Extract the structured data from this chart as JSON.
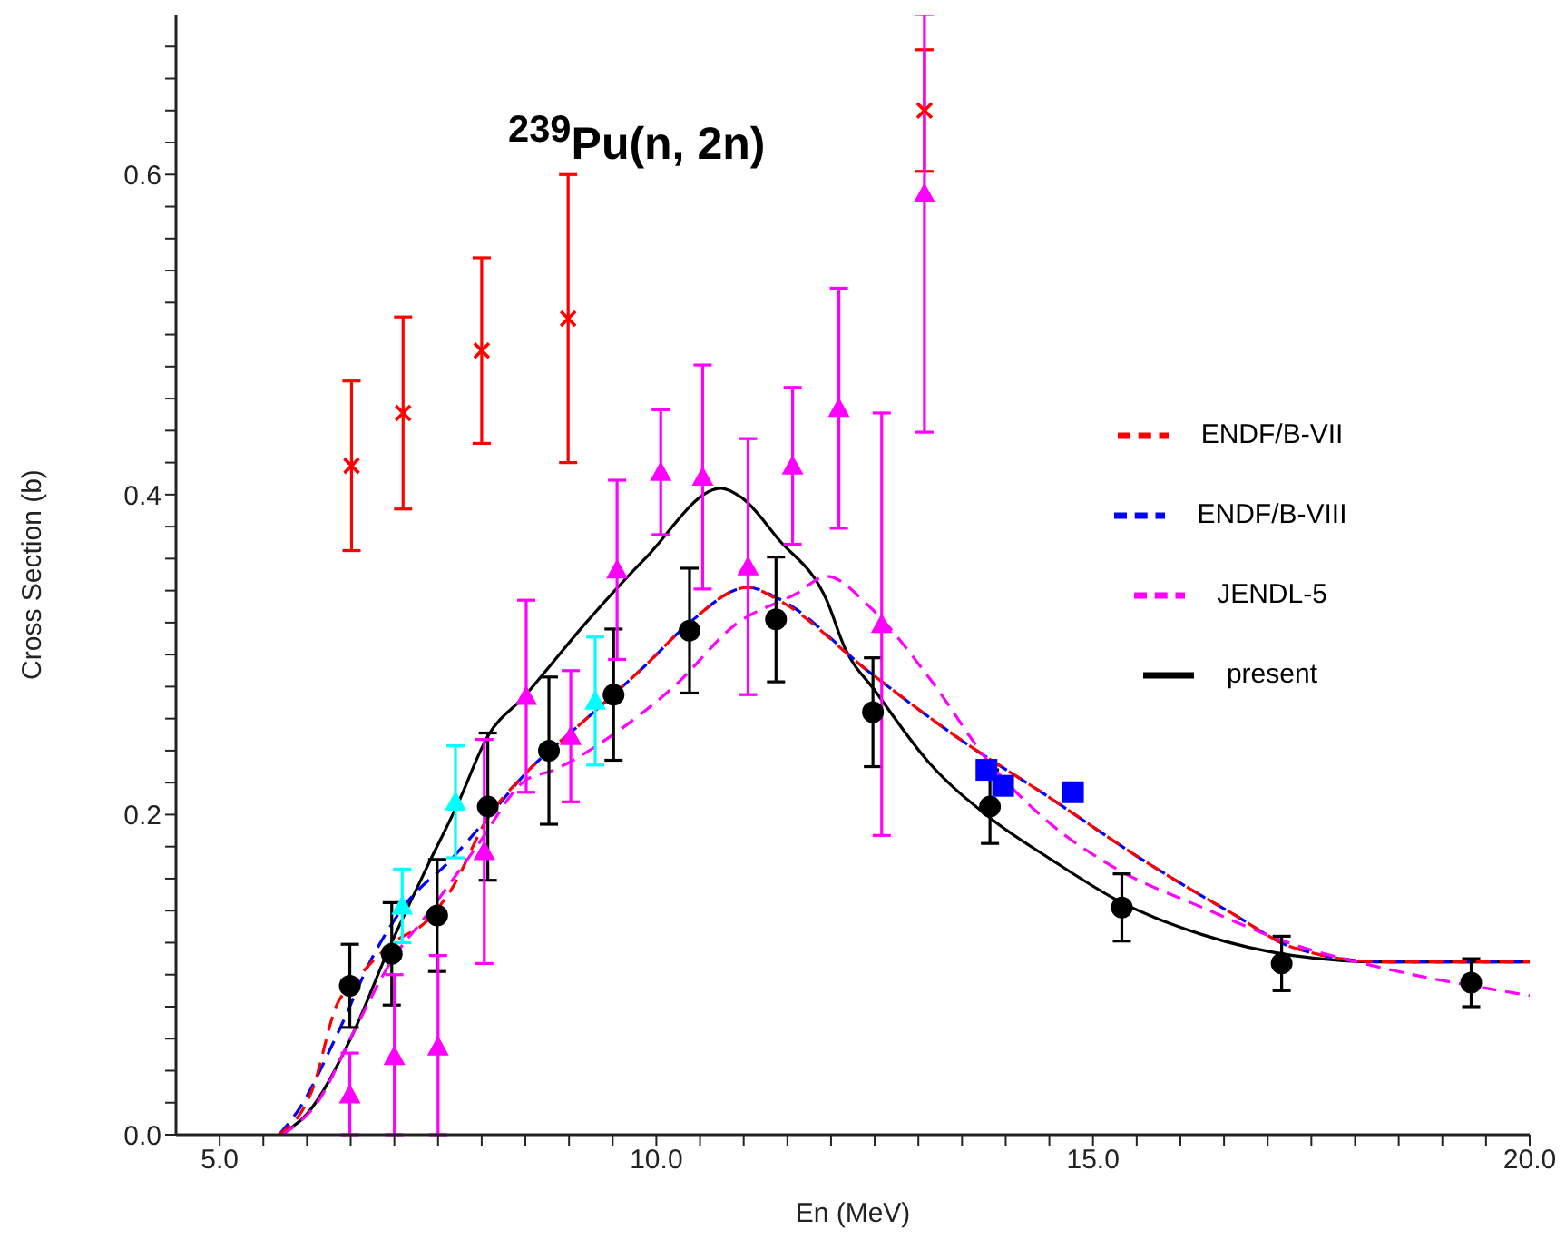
{
  "chart_data": {
    "type": "line",
    "title": "$^{239}$Pu(n, 2n)",
    "xlabel": "En  (MeV)",
    "ylabel": "Cross Section  (b)",
    "xlim": [
      4.5,
      20
    ],
    "ylim": [
      0,
      0.7
    ],
    "xticks": [
      {
        "value": 5,
        "label": "5.0"
      },
      {
        "value": 5.5,
        "label": null
      },
      {
        "value": 6,
        "label": null
      },
      {
        "value": 6.5,
        "label": null
      },
      {
        "value": 7,
        "label": null
      },
      {
        "value": 7.5,
        "label": null
      },
      {
        "value": 8,
        "label": null
      },
      {
        "value": 8.5,
        "label": null
      },
      {
        "value": 9,
        "label": null
      },
      {
        "value": 9.5,
        "label": null
      },
      {
        "value": 10,
        "label": "10.0"
      },
      {
        "value": 10.5,
        "label": null
      },
      {
        "value": 11,
        "label": null
      },
      {
        "value": 11.5,
        "label": null
      },
      {
        "value": 12,
        "label": null
      },
      {
        "value": 12.5,
        "label": null
      },
      {
        "value": 13,
        "label": null
      },
      {
        "value": 13.5,
        "label": null
      },
      {
        "value": 14,
        "label": null
      },
      {
        "value": 14.5,
        "label": null
      },
      {
        "value": 15,
        "label": "15.0"
      },
      {
        "value": 15.5,
        "label": null
      },
      {
        "value": 16,
        "label": null
      },
      {
        "value": 16.5,
        "label": null
      },
      {
        "value": 17,
        "label": null
      },
      {
        "value": 17.5,
        "label": null
      },
      {
        "value": 18,
        "label": null
      },
      {
        "value": 18.5,
        "label": null
      },
      {
        "value": 19,
        "label": null
      },
      {
        "value": 19.5,
        "label": null
      },
      {
        "value": 20,
        "label": "20.0"
      }
    ],
    "yticks": [
      {
        "value": 0,
        "label": "0.0"
      },
      {
        "value": 0.02,
        "label": null
      },
      {
        "value": 0.04,
        "label": null
      },
      {
        "value": 0.06,
        "label": null
      },
      {
        "value": 0.08,
        "label": null
      },
      {
        "value": 0.1,
        "label": null
      },
      {
        "value": 0.12,
        "label": null
      },
      {
        "value": 0.14,
        "label": null
      },
      {
        "value": 0.16,
        "label": null
      },
      {
        "value": 0.18,
        "label": null
      },
      {
        "value": 0.2,
        "label": "0.2"
      },
      {
        "value": 0.22,
        "label": null
      },
      {
        "value": 0.24,
        "label": null
      },
      {
        "value": 0.26,
        "label": null
      },
      {
        "value": 0.28,
        "label": null
      },
      {
        "value": 0.3,
        "label": null
      },
      {
        "value": 0.32,
        "label": null
      },
      {
        "value": 0.34,
        "label": null
      },
      {
        "value": 0.36,
        "label": null
      },
      {
        "value": 0.38,
        "label": null
      },
      {
        "value": 0.4,
        "label": "0.4"
      },
      {
        "value": 0.42,
        "label": null
      },
      {
        "value": 0.44,
        "label": null
      },
      {
        "value": 0.46,
        "label": null
      },
      {
        "value": 0.48,
        "label": null
      },
      {
        "value": 0.5,
        "label": null
      },
      {
        "value": 0.52,
        "label": null
      },
      {
        "value": 0.54,
        "label": null
      },
      {
        "value": 0.56,
        "label": null
      },
      {
        "value": 0.58,
        "label": null
      },
      {
        "value": 0.6,
        "label": "0.6"
      },
      {
        "value": 0.62,
        "label": null
      },
      {
        "value": 0.64,
        "label": null
      },
      {
        "value": 0.66,
        "label": null
      },
      {
        "value": 0.68,
        "label": null
      },
      {
        "value": 0.7,
        "label": null
      }
    ],
    "grid": false,
    "legend": "right",
    "series": [
      {
        "name": "present",
        "type": "line",
        "color": "#000000",
        "line_style": "solid",
        "marker": "none",
        "x": [
          5.68,
          6.0,
          6.49,
          6.96,
          7.38,
          7.72,
          8.07,
          8.49,
          9.18,
          9.87,
          10.74,
          10.98,
          11.4,
          11.95,
          12.16,
          12.51,
          13.13,
          13.82,
          14.52,
          15.33,
          16.25,
          17.29,
          18.33,
          20.0
        ],
        "values": [
          0,
          0.013,
          0.059,
          0.119,
          0.168,
          0.206,
          0.249,
          0.274,
          0.319,
          0.36,
          0.404,
          0.398,
          0.372,
          0.334,
          0.304,
          0.277,
          0.232,
          0.198,
          0.172,
          0.145,
          0.125,
          0.112,
          0.108,
          0.108
        ]
      },
      {
        "name": "ENDF/B-VIII",
        "type": "line",
        "color": "#0000ff",
        "line_style": "dashed",
        "marker": "none",
        "x": [
          5.68,
          5.92,
          6.34,
          6.75,
          7.1,
          7.65,
          8.07,
          8.49,
          9.18,
          9.87,
          10.36,
          11.05,
          11.4,
          12.44,
          13.48,
          14.52,
          15.56,
          16.6,
          17.29,
          18.33,
          20.0
        ],
        "values": [
          0,
          0.017,
          0.062,
          0.111,
          0.142,
          0.172,
          0.198,
          0.225,
          0.259,
          0.293,
          0.319,
          0.342,
          0.335,
          0.289,
          0.247,
          0.21,
          0.172,
          0.138,
          0.117,
          0.108,
          0.108
        ]
      },
      {
        "name": "ENDF/B-VII",
        "type": "line",
        "color": "#ff0000",
        "line_style": "dashed",
        "marker": "none",
        "x": [
          5.68,
          6.06,
          6.34,
          6.55,
          6.96,
          7.38,
          7.65,
          8.07,
          8.49,
          9.18,
          9.87,
          10.36,
          11.05,
          11.4,
          12.44,
          13.48,
          14.52,
          15.56,
          16.6,
          17.29,
          18.33,
          20.0
        ],
        "values": [
          0,
          0.028,
          0.081,
          0.096,
          0.119,
          0.134,
          0.153,
          0.198,
          0.225,
          0.259,
          0.293,
          0.319,
          0.342,
          0.334,
          0.289,
          0.247,
          0.21,
          0.172,
          0.138,
          0.117,
          0.108,
          0.108
        ]
      },
      {
        "name": "JENDL-5",
        "type": "line",
        "color": "#ff00ff",
        "line_style": "dashed",
        "marker": "none",
        "x": [
          5.72,
          6.13,
          6.55,
          6.96,
          7.38,
          7.93,
          8.49,
          8.83,
          9.53,
          10.22,
          10.91,
          11.6,
          11.95,
          12.44,
          13.13,
          13.82,
          14.52,
          15.21,
          16.25,
          17.29,
          18.33,
          20.0
        ],
        "values": [
          0,
          0.021,
          0.066,
          0.108,
          0.138,
          0.179,
          0.221,
          0.228,
          0.251,
          0.281,
          0.319,
          0.338,
          0.349,
          0.33,
          0.285,
          0.232,
          0.194,
          0.168,
          0.142,
          0.119,
          0.104,
          0.087
        ]
      },
      {
        "type": "scatter",
        "color": "#000000",
        "marker": "circle",
        "x": [
          6.49,
          6.97,
          7.49,
          8.07,
          8.77,
          9.51,
          10.38,
          11.37,
          12.48,
          13.82,
          15.33,
          17.16,
          19.33
        ],
        "values": [
          0.093,
          0.113,
          0.137,
          0.205,
          0.24,
          0.275,
          0.315,
          0.322,
          0.264,
          0.205,
          0.142,
          0.107,
          0.095
        ],
        "errors": [
          0.026,
          0.032,
          0.035,
          0.046,
          0.046,
          0.041,
          0.039,
          0.039,
          0.034,
          0.023,
          0.021,
          0.017,
          0.015
        ]
      },
      {
        "type": "scatter",
        "color": "#ff0000",
        "marker": "cross",
        "x": [
          6.51,
          7.1,
          8.0,
          8.99,
          13.07
        ],
        "values": [
          0.418,
          0.451,
          0.49,
          0.51,
          0.64
        ],
        "errors": [
          0.053,
          0.06,
          0.058,
          0.09,
          0.038
        ]
      },
      {
        "type": "scatter",
        "color": "#ff00ff",
        "marker": "triangle",
        "x": [
          6.49,
          7.0,
          7.5,
          8.03,
          8.51,
          9.02,
          9.55,
          10.05,
          10.53,
          11.05,
          11.56,
          12.09,
          12.58,
          13.07
        ],
        "values": [
          0.025,
          0.049,
          0.055,
          0.177,
          0.274,
          0.249,
          0.353,
          0.414,
          0.411,
          0.355,
          0.418,
          0.454,
          0.319,
          0.588
        ],
        "errors": [
          [
            0,
            0.051
          ],
          [
            0,
            0.1
          ],
          [
            0,
            0.112
          ],
          0.07,
          0.06,
          0.041,
          0.056,
          0.039,
          0.07,
          0.08,
          0.049,
          0.075,
          0.132,
          [
            0.439,
            0.7
          ]
        ]
      },
      {
        "type": "scatter",
        "color": "#00ffff",
        "marker": "triangle",
        "x": [
          7.09,
          7.7,
          9.3
        ],
        "values": [
          0.143,
          0.208,
          0.271
        ],
        "errors": [
          0.023,
          0.035,
          0.04
        ]
      },
      {
        "type": "scatter",
        "color": "#0000ff",
        "marker": "square",
        "x": [
          13.78,
          13.97,
          14.77
        ],
        "values": [
          0.228,
          0.218,
          0.214
        ]
      }
    ]
  }
}
